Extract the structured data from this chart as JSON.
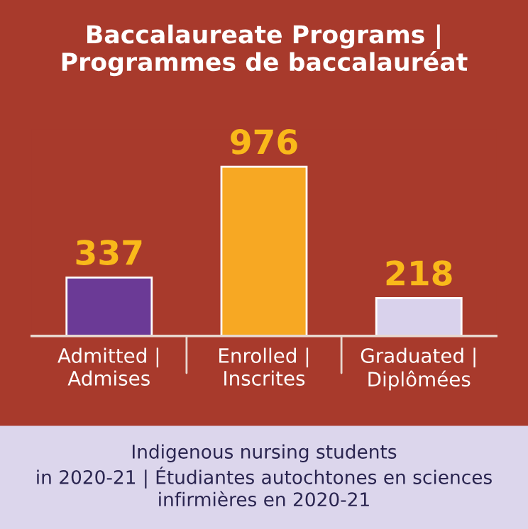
{
  "chart_data": {
    "type": "bar",
    "title": "Baccalaureate Programs |\nProgrammes de baccalauréat",
    "categories": [
      "Admitted |\nAdmises",
      "Enrolled |\nInscrites",
      "Graduated |\nDiplômées"
    ],
    "values": [
      337,
      976,
      218
    ],
    "colors": [
      "#6b3a96",
      "#f7a823",
      "#d9d2ec"
    ],
    "data_labels": true,
    "annotations": [
      "Indigenous nursing students\nin 2020-21 | Étudiantes autochtones en sciences\ninfirmières en 2020-21"
    ]
  }
}
